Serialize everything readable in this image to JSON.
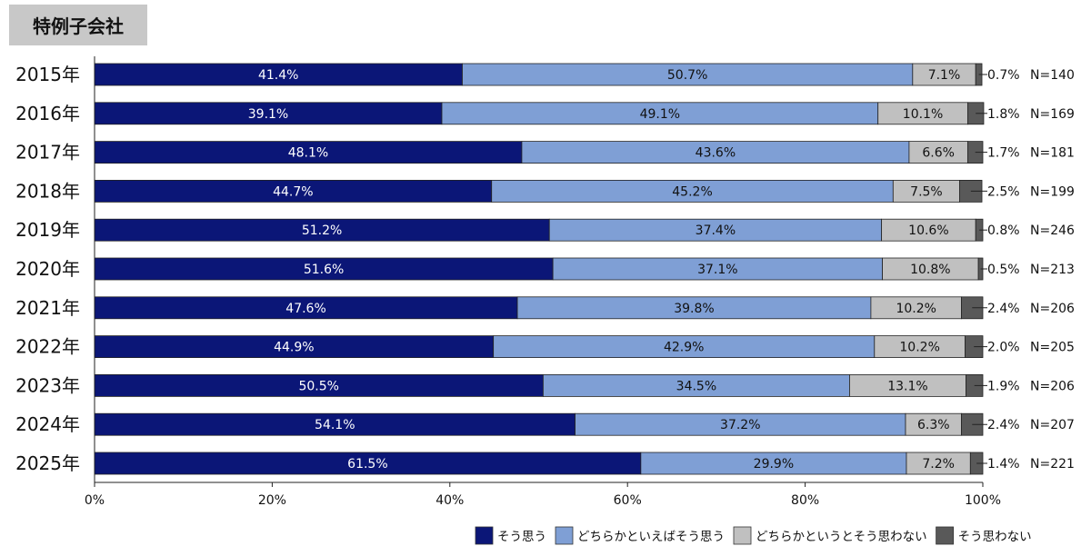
{
  "chart_data": {
    "type": "bar",
    "orientation": "horizontal",
    "stacked": true,
    "title": "特例子会社",
    "categories": [
      "2015年",
      "2016年",
      "2017年",
      "2018年",
      "2019年",
      "2020年",
      "2021年",
      "2022年",
      "2023年",
      "2024年",
      "2025年"
    ],
    "n_labels": [
      "N=140",
      "N=169",
      "N=181",
      "N=199",
      "N=246",
      "N=213",
      "N=206",
      "N=205",
      "N=206",
      "N=207",
      "N=221"
    ],
    "series": [
      {
        "name": "そう思う",
        "color": "#0b1677",
        "values": [
          41.4,
          39.1,
          48.1,
          44.7,
          51.2,
          51.6,
          47.6,
          44.9,
          50.5,
          54.1,
          61.5
        ]
      },
      {
        "name": "どちらかといえばそう思う",
        "color": "#7f9fd5",
        "values": [
          50.7,
          49.1,
          43.6,
          45.2,
          37.4,
          37.1,
          39.8,
          42.9,
          34.5,
          37.2,
          29.9
        ]
      },
      {
        "name": "どちらかというとそう思わない",
        "color": "#c0c0c0",
        "values": [
          7.1,
          10.1,
          6.6,
          7.5,
          10.6,
          10.8,
          10.2,
          10.2,
          13.1,
          6.3,
          7.2
        ]
      },
      {
        "name": "そう思わない",
        "color": "#595959",
        "values": [
          0.7,
          1.8,
          1.7,
          2.5,
          0.8,
          0.5,
          2.4,
          2.0,
          1.9,
          2.4,
          1.4
        ]
      }
    ],
    "xlim": [
      0,
      100
    ],
    "xticks": [
      "0%",
      "20%",
      "40%",
      "60%",
      "80%",
      "100%"
    ],
    "grid": false,
    "legend": "bottom-right"
  }
}
